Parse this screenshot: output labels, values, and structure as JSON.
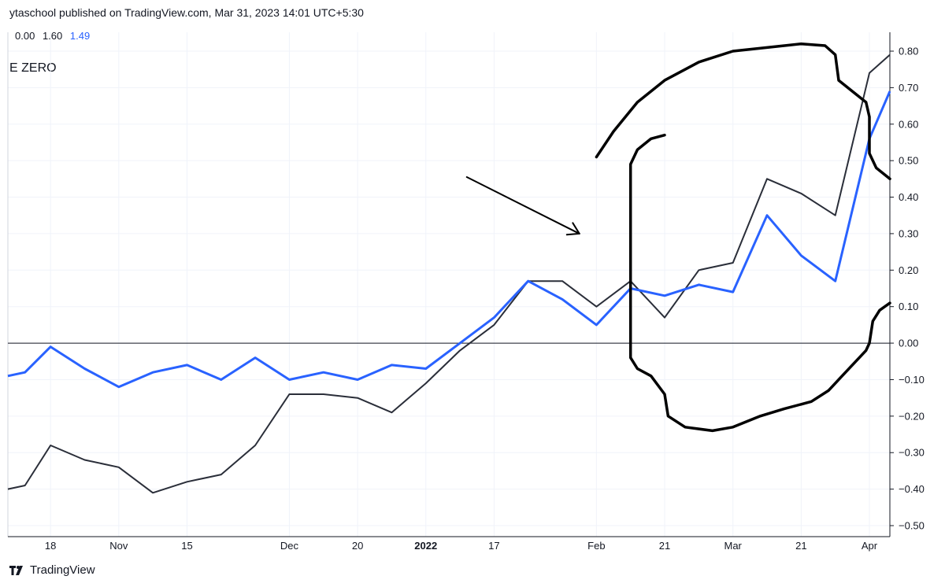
{
  "header": {
    "publisher": "ytaschool published on TradingView.com, Mar 31, 2023 14:01 UTC+5:30"
  },
  "legend_values": [
    "0.00",
    "1.60",
    "1.49"
  ],
  "series_label": "E ZERO",
  "footer": {
    "brand": "TradingView"
  },
  "colors": {
    "blue": "#2962ff",
    "dark": "#2a2e39",
    "grid": "#f0f3fa",
    "zero": "#131722"
  },
  "chart_data": {
    "type": "line",
    "x_ticks": [
      "18",
      "Nov",
      "15",
      "Dec",
      "20",
      "2022",
      "17",
      "Feb",
      "21",
      "Mar",
      "21",
      "Apr"
    ],
    "x_tick_index": [
      1.0,
      3.0,
      5.0,
      8.0,
      10.0,
      12.0,
      14.0,
      17.0,
      19.0,
      21.0,
      23.0,
      25.0
    ],
    "x_bold_tick": "2022",
    "x_range": [
      -0.25,
      25.6
    ],
    "y_ticks": [
      "0.80",
      "0.70",
      "0.60",
      "0.50",
      "0.40",
      "0.30",
      "0.20",
      "0.10",
      "0.00",
      "−0.10",
      "−0.20",
      "−0.30",
      "−0.40",
      "−0.50"
    ],
    "ylim": [
      -0.5,
      0.8
    ],
    "zero_line": 0.0,
    "series": [
      {
        "color": "#2962ff",
        "x": [
          -0.25,
          0.25,
          1.0,
          2.0,
          3.0,
          4.0,
          5.0,
          6.0,
          7.0,
          8.0,
          9.0,
          10.0,
          11.0,
          12.0,
          13.0,
          14.0,
          15.0,
          16.0,
          17.0,
          18.0,
          19.0,
          20.0,
          21.0,
          22.0,
          23.0,
          24.0,
          25.0,
          25.6
        ],
        "y": [
          -0.09,
          -0.08,
          -0.01,
          -0.07,
          -0.12,
          -0.08,
          -0.06,
          -0.1,
          -0.04,
          -0.1,
          -0.08,
          -0.1,
          -0.06,
          -0.07,
          0.0,
          0.07,
          0.17,
          0.12,
          0.05,
          0.15,
          0.13,
          0.16,
          0.14,
          0.35,
          0.24,
          0.17,
          0.56,
          0.69
        ]
      },
      {
        "color": "#2a2e39",
        "x": [
          -0.25,
          0.25,
          1.0,
          2.0,
          3.0,
          4.0,
          5.0,
          6.0,
          7.0,
          8.0,
          9.0,
          10.0,
          11.0,
          12.0,
          13.0,
          14.0,
          15.0,
          16.0,
          17.0,
          18.0,
          19.0,
          20.0,
          21.0,
          22.0,
          23.0,
          24.0,
          25.0,
          25.6
        ],
        "y": [
          -0.4,
          -0.39,
          -0.28,
          -0.32,
          -0.34,
          -0.41,
          -0.38,
          -0.36,
          -0.28,
          -0.14,
          -0.14,
          -0.15,
          -0.19,
          -0.11,
          -0.02,
          0.05,
          0.17,
          0.17,
          0.1,
          0.17,
          0.07,
          0.2,
          0.22,
          0.45,
          0.41,
          0.35,
          0.74,
          0.79
        ]
      }
    ],
    "annotations": [
      {
        "type": "arrow",
        "points": [
          [
            13.2,
            0.455
          ],
          [
            16.5,
            0.3
          ]
        ]
      },
      {
        "type": "freehand",
        "points": [
          [
            17.0,
            0.51
          ],
          [
            17.5,
            0.58
          ],
          [
            18.2,
            0.66
          ],
          [
            19.0,
            0.72
          ],
          [
            20.0,
            0.77
          ],
          [
            21.0,
            0.8
          ],
          [
            22.0,
            0.81
          ],
          [
            23.0,
            0.82
          ],
          [
            23.7,
            0.815
          ],
          [
            24.0,
            0.79
          ],
          [
            24.1,
            0.72
          ],
          [
            24.5,
            0.69
          ],
          [
            24.9,
            0.66
          ],
          [
            25.0,
            0.62
          ],
          [
            25.0,
            0.52
          ],
          [
            25.2,
            0.48
          ],
          [
            25.6,
            0.45
          ]
        ]
      },
      {
        "type": "freehand",
        "points": [
          [
            19.0,
            0.57
          ],
          [
            18.6,
            0.56
          ],
          [
            18.2,
            0.53
          ],
          [
            18.0,
            0.49
          ],
          [
            18.0,
            0.3
          ],
          [
            18.0,
            0.1
          ],
          [
            18.0,
            -0.04
          ],
          [
            18.2,
            -0.07
          ],
          [
            18.6,
            -0.09
          ],
          [
            19.0,
            -0.14
          ],
          [
            19.1,
            -0.2
          ],
          [
            19.6,
            -0.23
          ],
          [
            20.4,
            -0.24
          ],
          [
            21.0,
            -0.23
          ],
          [
            21.8,
            -0.2
          ],
          [
            22.5,
            -0.18
          ],
          [
            23.3,
            -0.16
          ],
          [
            23.8,
            -0.13
          ],
          [
            24.2,
            -0.09
          ],
          [
            24.9,
            -0.02
          ],
          [
            25.0,
            0.0
          ],
          [
            25.1,
            0.06
          ],
          [
            25.3,
            0.09
          ],
          [
            25.6,
            0.11
          ]
        ]
      }
    ]
  }
}
